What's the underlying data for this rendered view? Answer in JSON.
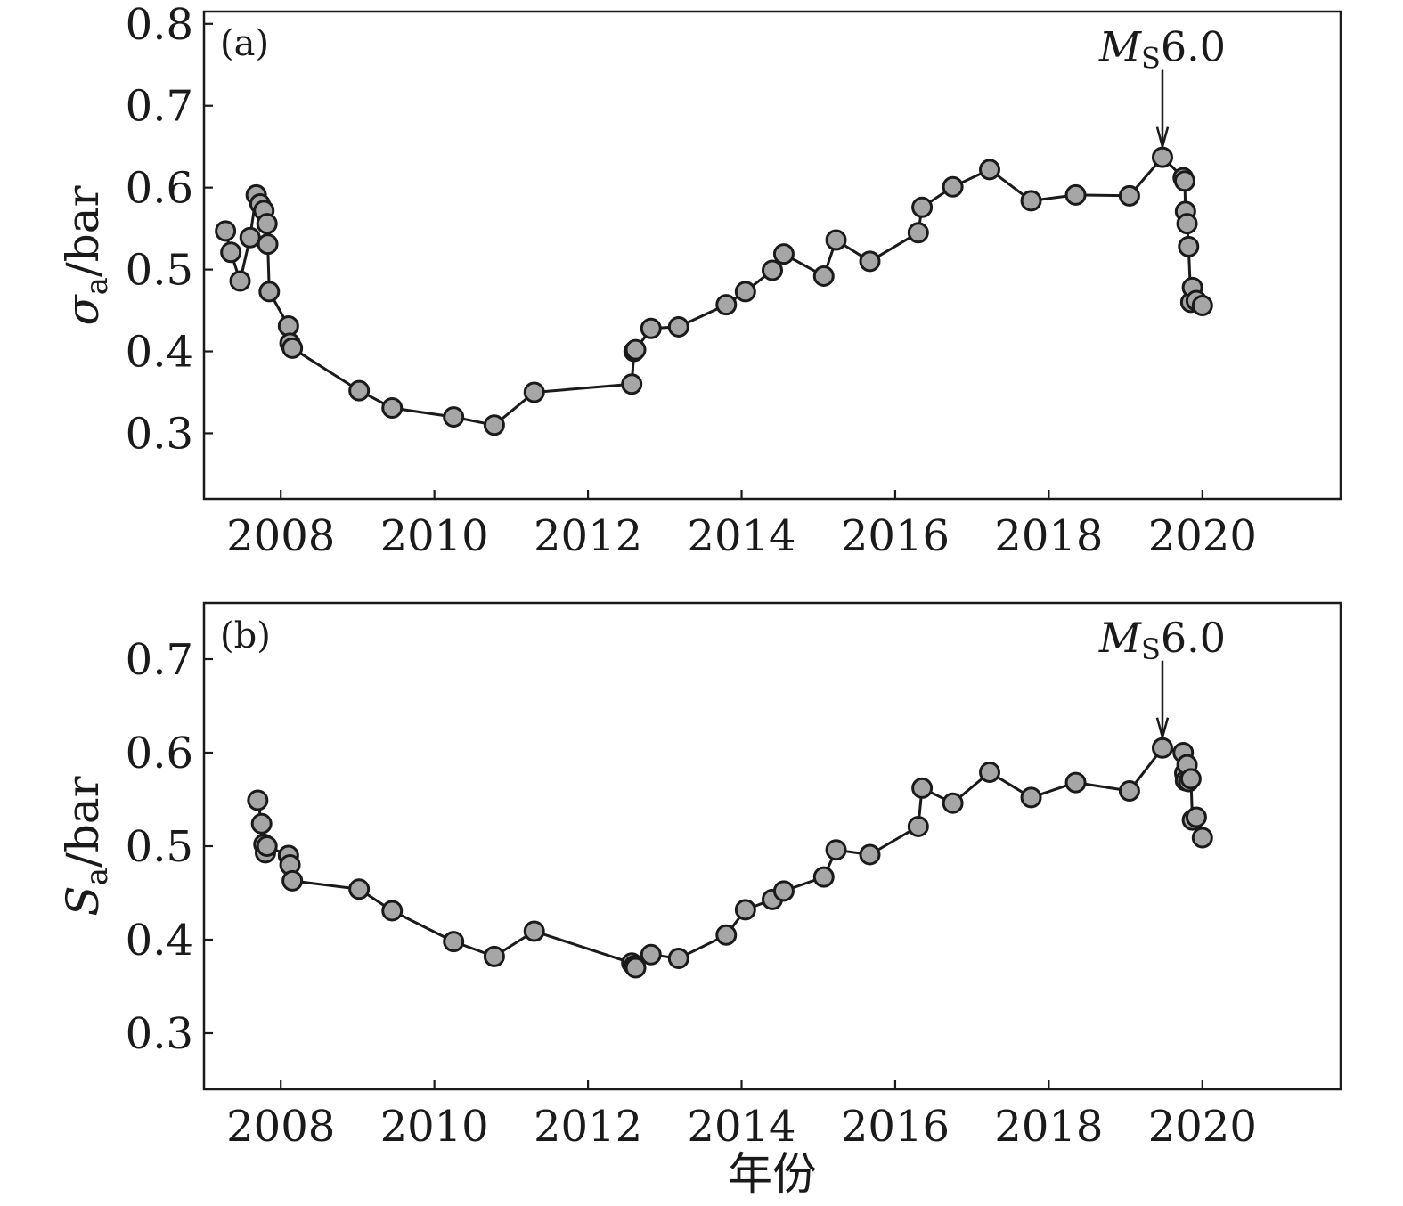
{
  "chart_data": [
    {
      "type": "line",
      "panel_label": "(a)",
      "title": "",
      "xlabel": "",
      "ylabel_symbol": "σ",
      "ylabel_sub": "a",
      "ylabel_unit": "/bar",
      "xlim": [
        2007.0,
        2021.8
      ],
      "ylim": [
        0.22,
        0.815
      ],
      "xticks": [
        2008,
        2010,
        2012,
        2014,
        2016,
        2018,
        2020
      ],
      "xtick_labels": [
        "2008",
        "2010",
        "2012",
        "2014",
        "2016",
        "2018",
        "2020"
      ],
      "yticks": [
        0.3,
        0.4,
        0.5,
        0.6,
        0.7,
        0.8
      ],
      "ytick_labels": [
        "0.3",
        "0.4",
        "0.5",
        "0.6",
        "0.7",
        "0.8"
      ],
      "marker_color": "#a6a6a6",
      "line_color": "#1a1a1a",
      "annotation": {
        "italic": "M",
        "sub": "S",
        "text": "6.0",
        "x": 2019.48,
        "y": 0.637
      },
      "series": [
        {
          "x": [
            2007.28,
            2007.35,
            2007.47,
            2007.6,
            2007.68,
            2007.73,
            2007.78,
            2007.82,
            2007.83,
            2007.85,
            2008.1,
            2008.12,
            2008.15,
            2009.02,
            2009.45,
            2010.25,
            2010.78,
            2011.3,
            2012.57,
            2012.6,
            2012.62,
            2012.82,
            2013.18,
            2013.8,
            2014.05,
            2014.4,
            2014.55,
            2015.07,
            2015.23,
            2015.67,
            2016.3,
            2016.35,
            2016.75,
            2017.23,
            2017.77,
            2018.35,
            2019.05,
            2019.48,
            2019.75,
            2019.77,
            2019.78,
            2019.8,
            2019.82,
            2019.85,
            2019.87,
            2019.92,
            2020.0
          ],
          "y": [
            0.547,
            0.521,
            0.486,
            0.539,
            0.591,
            0.58,
            0.572,
            0.556,
            0.531,
            0.473,
            0.431,
            0.41,
            0.404,
            0.352,
            0.331,
            0.32,
            0.31,
            0.35,
            0.36,
            0.4,
            0.402,
            0.428,
            0.43,
            0.457,
            0.473,
            0.499,
            0.519,
            0.492,
            0.536,
            0.51,
            0.545,
            0.576,
            0.601,
            0.622,
            0.584,
            0.591,
            0.59,
            0.637,
            0.612,
            0.608,
            0.571,
            0.556,
            0.528,
            0.46,
            0.478,
            0.462,
            0.456
          ]
        }
      ]
    },
    {
      "type": "line",
      "panel_label": "(b)",
      "title": "",
      "xlabel": "年份",
      "ylabel_symbol": "S",
      "ylabel_sub": "a",
      "ylabel_unit": "/bar",
      "xlim": [
        2007.0,
        2021.8
      ],
      "ylim": [
        0.24,
        0.76
      ],
      "xticks": [
        2008,
        2010,
        2012,
        2014,
        2016,
        2018,
        2020
      ],
      "xtick_labels": [
        "2008",
        "2010",
        "2012",
        "2014",
        "2016",
        "2018",
        "2020"
      ],
      "yticks": [
        0.3,
        0.4,
        0.5,
        0.6,
        0.7
      ],
      "ytick_labels": [
        "0.3",
        "0.4",
        "0.5",
        "0.6",
        "0.7"
      ],
      "marker_color": "#a6a6a6",
      "line_color": "#1a1a1a",
      "annotation": {
        "italic": "M",
        "sub": "S",
        "text": "6.0",
        "x": 2019.48,
        "y": 0.605
      },
      "series": [
        {
          "x": [
            2007.7,
            2007.75,
            2007.78,
            2007.8,
            2007.82,
            2008.1,
            2008.12,
            2008.15,
            2009.02,
            2009.45,
            2010.25,
            2010.78,
            2011.3,
            2012.57,
            2012.6,
            2012.62,
            2012.82,
            2013.18,
            2013.8,
            2014.05,
            2014.4,
            2014.55,
            2015.07,
            2015.23,
            2015.67,
            2016.3,
            2016.35,
            2016.75,
            2017.23,
            2017.77,
            2018.35,
            2019.05,
            2019.48,
            2019.75,
            2019.77,
            2019.78,
            2019.8,
            2019.82,
            2019.85,
            2019.87,
            2019.92,
            2020.0
          ],
          "y": [
            0.549,
            0.524,
            0.502,
            0.493,
            0.5,
            0.49,
            0.48,
            0.463,
            0.454,
            0.431,
            0.398,
            0.382,
            0.409,
            0.375,
            0.372,
            0.37,
            0.384,
            0.38,
            0.405,
            0.432,
            0.443,
            0.452,
            0.467,
            0.496,
            0.491,
            0.521,
            0.562,
            0.546,
            0.579,
            0.552,
            0.568,
            0.559,
            0.605,
            0.6,
            0.578,
            0.57,
            0.587,
            0.569,
            0.572,
            0.528,
            0.531,
            0.509
          ]
        }
      ]
    }
  ]
}
